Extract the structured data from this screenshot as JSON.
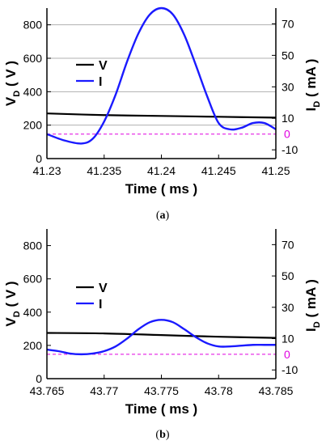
{
  "chart_data": [
    {
      "type": "line",
      "panel": "a",
      "caption_letter": "a",
      "xlabel_main": "Time",
      "xlabel_unit": "( ms )",
      "y_left_label_main": "V",
      "y_left_label_sub": "D",
      "y_left_label_unit": " ( V )",
      "y_right_label_main": "I",
      "y_right_label_sub": "D",
      "y_right_label_unit": " ( mA )",
      "xlim": [
        41.23,
        41.25
      ],
      "x_ticks": [
        41.23,
        41.235,
        41.24,
        41.245,
        41.25
      ],
      "x_tick_labels": [
        "41.23",
        "41.235",
        "41.24",
        "41.245",
        "41.25"
      ],
      "ylim_left": [
        0,
        900
      ],
      "y_left_ticks": [
        0,
        200,
        400,
        600,
        800
      ],
      "ylim_right": [
        -15.56,
        80
      ],
      "y_right_ticks": [
        -10,
        10,
        30,
        50,
        70
      ],
      "y_right_zero_label": "0",
      "grid": "horizontal",
      "legend": {
        "position": "left-middle",
        "entries": [
          "V",
          "I"
        ]
      },
      "zero_line": {
        "axis": "right",
        "value": 0,
        "color": "#e000e0",
        "style": "dashed"
      },
      "series": [
        {
          "name": "V",
          "axis": "left",
          "color": "#000000",
          "x": [
            41.23,
            41.235,
            41.24,
            41.245,
            41.25
          ],
          "y": [
            270,
            260,
            255,
            250,
            245
          ]
        },
        {
          "name": "I",
          "axis": "right",
          "color": "#1a1aff",
          "x": [
            41.23,
            41.2315,
            41.233,
            41.234,
            41.235,
            41.236,
            41.237,
            41.238,
            41.239,
            41.24,
            41.241,
            41.242,
            41.243,
            41.244,
            41.245,
            41.246,
            41.247,
            41.248,
            41.249,
            41.25
          ],
          "y": [
            0,
            -4,
            -6,
            -3,
            8,
            25,
            46,
            64,
            76,
            80,
            76,
            63,
            44,
            24,
            7,
            3,
            4,
            7,
            7,
            3
          ]
        }
      ]
    },
    {
      "type": "line",
      "panel": "b",
      "caption_letter": "b",
      "xlabel_main": "Time",
      "xlabel_unit": "( ms )",
      "y_left_label_main": "V",
      "y_left_label_sub": "D",
      "y_left_label_unit": " ( V )",
      "y_right_label_main": "I",
      "y_right_label_sub": "D",
      "y_right_label_unit": " ( mA )",
      "xlim": [
        43.765,
        43.785
      ],
      "x_ticks": [
        43.765,
        43.77,
        43.775,
        43.78,
        43.785
      ],
      "x_tick_labels": [
        "43.765",
        "43.77",
        "43.775",
        "43.78",
        "43.785"
      ],
      "ylim_left": [
        0,
        900
      ],
      "y_left_ticks": [
        0,
        200,
        400,
        600,
        800
      ],
      "ylim_right": [
        -15.56,
        80
      ],
      "y_right_ticks": [
        -10,
        10,
        30,
        50,
        70
      ],
      "y_right_zero_label": "0",
      "grid": "none",
      "legend": {
        "position": "left-middle",
        "entries": [
          "V",
          "I"
        ]
      },
      "zero_line": {
        "axis": "right",
        "value": 0,
        "color": "#e000e0",
        "style": "dashed"
      },
      "series": [
        {
          "name": "V",
          "axis": "left",
          "color": "#000000",
          "x": [
            43.765,
            43.77,
            43.775,
            43.78,
            43.785
          ],
          "y": [
            275,
            272,
            262,
            252,
            245
          ]
        },
        {
          "name": "I",
          "axis": "right",
          "color": "#1a1aff",
          "x": [
            43.765,
            43.766,
            43.767,
            43.768,
            43.769,
            43.77,
            43.771,
            43.772,
            43.773,
            43.774,
            43.775,
            43.776,
            43.777,
            43.778,
            43.779,
            43.78,
            43.781,
            43.782,
            43.783,
            43.784,
            43.785
          ],
          "y": [
            3,
            2,
            0.5,
            0,
            0.5,
            2,
            5,
            10,
            16,
            20.5,
            22,
            20.5,
            16,
            11,
            7,
            5,
            5,
            5.5,
            6,
            6,
            6
          ]
        }
      ]
    }
  ]
}
